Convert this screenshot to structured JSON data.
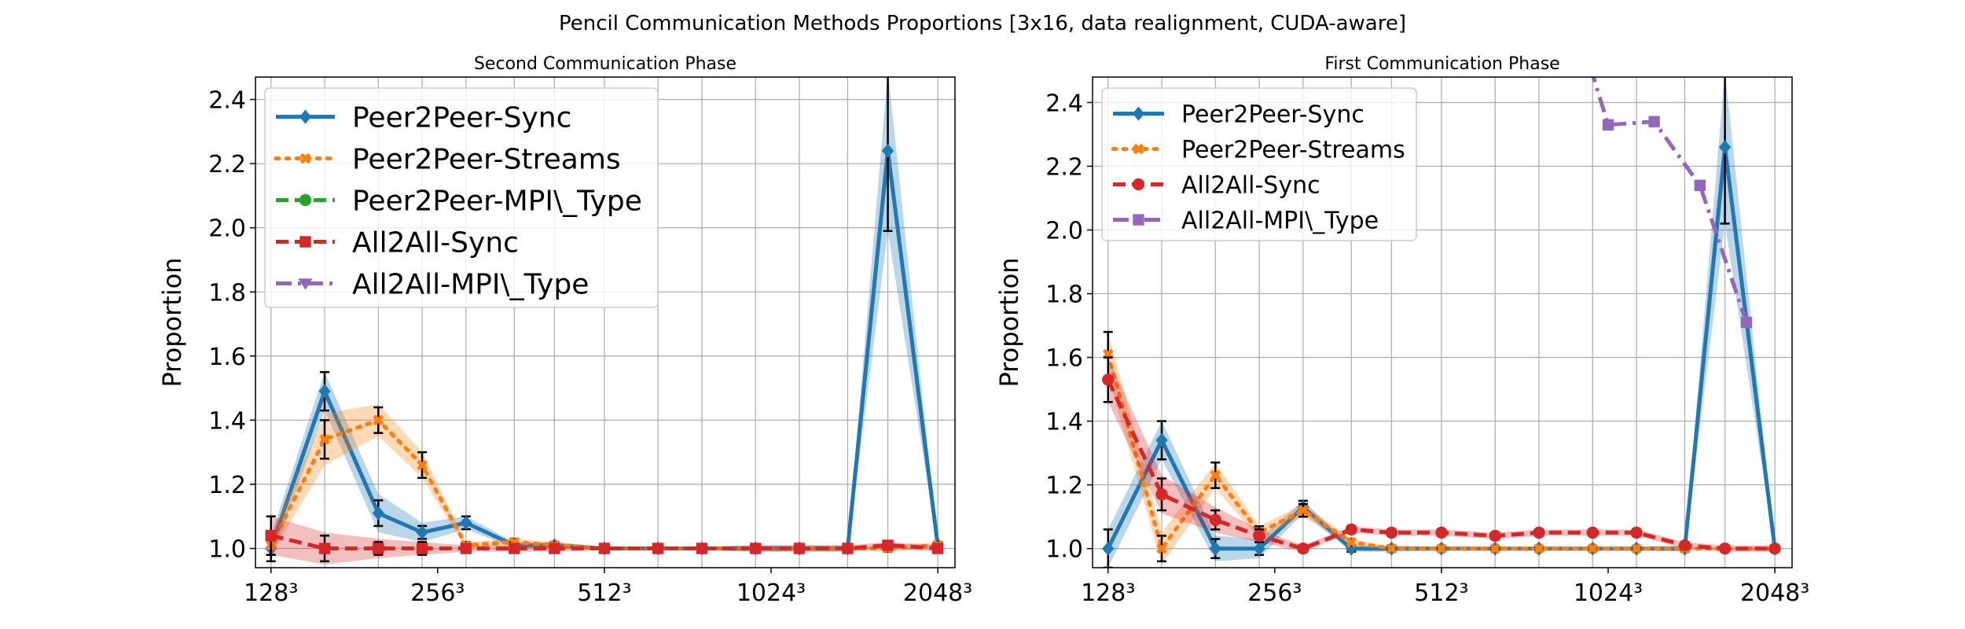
{
  "figure": {
    "suptitle": "Pencil Communication Methods Proportions [3x16, data realignment, CUDA-aware]"
  },
  "colors": {
    "Peer2Peer-Sync": "#1f77b4",
    "Peer2Peer-Streams": "#ff7f0e",
    "Peer2Peer-MPI\\_Type": "#2ca02c",
    "All2All-Sync": "#d62728",
    "All2All-MPI\\_Type": "#9467bd"
  },
  "chart_data": [
    {
      "type": "line",
      "title": "Second Communication Phase",
      "xlabel": "",
      "ylabel": "Proportion",
      "ylim": [
        0.94,
        2.47
      ],
      "yticks": [
        "1.0",
        "1.2",
        "1.4",
        "1.6",
        "1.8",
        "2.0",
        "2.2",
        "2.4"
      ],
      "xticks": [
        {
          "x": 128,
          "label": "128³"
        },
        {
          "x": 256,
          "label": "256³"
        },
        {
          "x": 512,
          "label": "512³"
        },
        {
          "x": 1024,
          "label": "1024³"
        },
        {
          "x": 2048,
          "label": "2048³"
        }
      ],
      "xscale": "log2",
      "grid": true,
      "legend_position": "top-left",
      "legend": [
        {
          "name": "Peer2Peer-Sync",
          "style": "solid",
          "marker": "diamond"
        },
        {
          "name": "Peer2Peer-Streams",
          "style": "dotted",
          "marker": "x"
        },
        {
          "name": "Peer2Peer-MPI\\_Type",
          "style": "dashed",
          "marker": "circle"
        },
        {
          "name": "All2All-Sync",
          "style": "dashed",
          "marker": "square"
        },
        {
          "name": "All2All-MPI\\_Type",
          "style": "dashdot",
          "marker": "triangle-down"
        }
      ],
      "x": [
        128,
        160,
        200,
        240,
        288,
        352,
        416,
        512,
        640,
        768,
        960,
        1152,
        1408,
        1664,
        2048
      ],
      "series": [
        {
          "name": "Peer2Peer-Sync",
          "values": [
            1.0,
            1.49,
            1.11,
            1.05,
            1.08,
            1.01,
            1.01,
            1.0,
            1.0,
            1.0,
            1.0,
            1.0,
            1.0,
            2.24,
            1.01
          ],
          "err": [
            0.04,
            0.06,
            0.04,
            0.02,
            0.02,
            0.01,
            0.01,
            0.005,
            0.005,
            0.005,
            0.01,
            0.01,
            0.01,
            0.25,
            0.01
          ],
          "band": [
            0.04,
            0.06,
            0.06,
            0.03,
            0.02,
            0.01,
            0.01,
            0.005,
            0.005,
            0.005,
            0.01,
            0.01,
            0.01,
            0.25,
            0.01
          ]
        },
        {
          "name": "Peer2Peer-Streams",
          "values": [
            1.01,
            1.34,
            1.4,
            1.26,
            1.01,
            1.02,
            1.01,
            1.0,
            1.0,
            1.0,
            1.0,
            1.0,
            1.0,
            1.0,
            1.01
          ],
          "err": [
            0.03,
            0.06,
            0.04,
            0.04,
            0.01,
            0.01,
            0.01,
            0.005,
            0.005,
            0.005,
            0.005,
            0.005,
            0.005,
            0.01,
            0.01
          ],
          "band": [
            0.03,
            0.08,
            0.05,
            0.04,
            0.01,
            0.01,
            0.01,
            0.005,
            0.005,
            0.005,
            0.005,
            0.005,
            0.005,
            0.01,
            0.01
          ]
        },
        {
          "name": "All2All-Sync",
          "values": [
            1.04,
            1.0,
            1.0,
            1.0,
            1.0,
            1.0,
            1.0,
            1.0,
            1.0,
            1.0,
            1.0,
            1.0,
            1.0,
            1.01,
            1.0
          ],
          "err": [
            0.06,
            0.04,
            0.02,
            0.02,
            0.01,
            0.01,
            0.01,
            0.005,
            0.005,
            0.005,
            0.01,
            0.01,
            0.01,
            0.01,
            0.01
          ],
          "band": [
            0.06,
            0.05,
            0.03,
            0.02,
            0.01,
            0.01,
            0.01,
            0.005,
            0.005,
            0.005,
            0.01,
            0.01,
            0.01,
            0.01,
            0.01
          ]
        }
      ]
    },
    {
      "type": "line",
      "title": "First Communication Phase",
      "xlabel": "",
      "ylabel": "Proportion",
      "ylim": [
        0.94,
        2.48
      ],
      "yticks": [
        "1.0",
        "1.2",
        "1.4",
        "1.6",
        "1.8",
        "2.0",
        "2.2",
        "2.4"
      ],
      "xticks": [
        {
          "x": 128,
          "label": "128³"
        },
        {
          "x": 256,
          "label": "256³"
        },
        {
          "x": 512,
          "label": "512³"
        },
        {
          "x": 1024,
          "label": "1024³"
        },
        {
          "x": 2048,
          "label": "2048³"
        }
      ],
      "xscale": "log2",
      "grid": true,
      "legend_position": "top-left",
      "legend": [
        {
          "name": "Peer2Peer-Sync",
          "style": "solid",
          "marker": "diamond"
        },
        {
          "name": "Peer2Peer-Streams",
          "style": "dotted",
          "marker": "x"
        },
        {
          "name": "All2All-Sync",
          "style": "dashed",
          "marker": "circle"
        },
        {
          "name": "All2All-MPI\\_Type",
          "style": "dashdot",
          "marker": "square"
        }
      ],
      "x": [
        128,
        160,
        200,
        240,
        288,
        352,
        416,
        512,
        640,
        768,
        960,
        1152,
        1408,
        1664,
        2048
      ],
      "series": [
        {
          "name": "Peer2Peer-Sync",
          "values": [
            1.0,
            1.34,
            1.0,
            1.0,
            1.13,
            1.0,
            1.0,
            1.0,
            1.0,
            1.0,
            1.0,
            1.0,
            1.0,
            2.26,
            1.0
          ],
          "err": [
            0.06,
            0.06,
            0.03,
            0.02,
            0.02,
            0.01,
            0.01,
            0.005,
            0.005,
            0.005,
            0.005,
            0.005,
            0.01,
            0.24,
            0.01
          ],
          "band": [
            0.06,
            0.06,
            0.04,
            0.03,
            0.02,
            0.01,
            0.01,
            0.005,
            0.005,
            0.005,
            0.005,
            0.005,
            0.01,
            0.24,
            0.01
          ]
        },
        {
          "name": "Peer2Peer-Streams",
          "values": [
            1.61,
            1.0,
            1.23,
            1.05,
            1.12,
            1.02,
            1.0,
            1.0,
            1.0,
            1.0,
            1.0,
            1.0,
            1.0,
            1.0,
            1.0
          ],
          "err": [
            0.07,
            0.04,
            0.04,
            0.02,
            0.02,
            0.01,
            0.005,
            0.005,
            0.005,
            0.005,
            0.005,
            0.005,
            0.005,
            0.005,
            0.005
          ],
          "band": [
            0.07,
            0.05,
            0.04,
            0.02,
            0.02,
            0.01,
            0.005,
            0.005,
            0.005,
            0.005,
            0.005,
            0.005,
            0.005,
            0.005,
            0.005
          ]
        },
        {
          "name": "All2All-Sync",
          "values": [
            1.53,
            1.17,
            1.09,
            1.04,
            1.0,
            1.06,
            1.05,
            1.05,
            1.04,
            1.05,
            1.05,
            1.05,
            1.01,
            1.0,
            1.0
          ],
          "err": [
            0.07,
            0.05,
            0.03,
            0.02,
            0.01,
            0.01,
            0.01,
            0.01,
            0.01,
            0.01,
            0.01,
            0.01,
            0.01,
            0.01,
            0.01
          ],
          "band": [
            0.07,
            0.06,
            0.04,
            0.02,
            0.01,
            0.01,
            0.01,
            0.01,
            0.01,
            0.01,
            0.01,
            0.01,
            0.01,
            0.01,
            0.01
          ]
        },
        {
          "name": "All2All-MPI\\_Type",
          "values": [
            null,
            null,
            null,
            null,
            null,
            null,
            null,
            null,
            2.7,
            2.33,
            2.34,
            2.14,
            1.71,
            null,
            null
          ],
          "x_override": [
            null,
            null,
            null,
            null,
            null,
            null,
            null,
            null,
            880,
            1024,
            1240,
            1500,
            1820,
            null,
            null
          ]
        }
      ]
    }
  ]
}
